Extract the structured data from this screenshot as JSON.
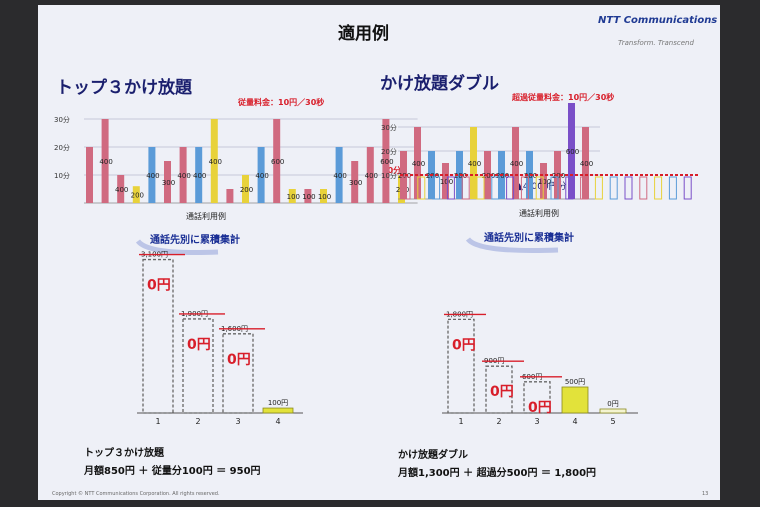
{
  "slide": {
    "title": "適用例",
    "logo": {
      "brand": "NTT Communications",
      "tagline": "Transform. Transcend"
    },
    "copyright": "Copyright © NTT Communications Corporation. All rights reserved.",
    "page_number": "13"
  },
  "left": {
    "heading": "トップ３かけ放題",
    "rate_note": "従量料金：10円／30秒",
    "chart_caption": "通話利用例",
    "arrow_label": "通話先別に累積集計",
    "summary_title": "トップ３かけ放題",
    "summary_formula": "月額850円 ＋ 従量分100円 ＝ 950円",
    "zero_label": "0円"
  },
  "right": {
    "heading": "かけ放題ダブル",
    "rate_note": "超過従量料金：10円／30秒",
    "chart_caption": "通話利用例",
    "arrow_label": "通話先別に累積集計",
    "threshold_label": "10分",
    "savings_label": "▲4,000円分",
    "summary_title": "かけ放題ダブル",
    "summary_formula": "月額1,300円 ＋ 超過分500円 ＝ 1,800円",
    "zero_label": "0円"
  },
  "chart_data": [
    {
      "type": "bar",
      "name": "left-usage",
      "y_ticks": [
        "10分",
        "20分",
        "30分"
      ],
      "ylim": [
        0,
        30
      ],
      "bars": [
        {
          "v": 20,
          "c": "#d06a80",
          "l": ""
        },
        {
          "v": 30,
          "c": "#d06a80",
          "l": "400"
        },
        {
          "v": 10,
          "c": "#d06a80",
          "l": "400"
        },
        {
          "v": 6,
          "c": "#e8d23a",
          "l": "200"
        },
        {
          "v": 20,
          "c": "#5b9bd8",
          "l": "400"
        },
        {
          "v": 15,
          "c": "#d06a80",
          "l": "300"
        },
        {
          "v": 20,
          "c": "#d06a80",
          "l": "400"
        },
        {
          "v": 20,
          "c": "#5b9bd8",
          "l": "400"
        },
        {
          "v": 30,
          "c": "#e8d23a",
          "l": "400"
        },
        {
          "v": 5,
          "c": "#d06a80",
          "l": ""
        },
        {
          "v": 10,
          "c": "#e8d23a",
          "l": "200"
        },
        {
          "v": 20,
          "c": "#5b9bd8",
          "l": "400"
        },
        {
          "v": 30,
          "c": "#d06a80",
          "l": "600"
        },
        {
          "v": 5,
          "c": "#e8d23a",
          "l": "100"
        },
        {
          "v": 5,
          "c": "#d06a80",
          "l": "100"
        },
        {
          "v": 5,
          "c": "#e8d23a",
          "l": "100"
        },
        {
          "v": 20,
          "c": "#5b9bd8",
          "l": "400"
        },
        {
          "v": 15,
          "c": "#d06a80",
          "l": "300"
        },
        {
          "v": 20,
          "c": "#d06a80",
          "l": "400"
        },
        {
          "v": 30,
          "c": "#d06a80",
          "l": "600"
        },
        {
          "v": 10,
          "c": "#e8d23a",
          "l": "200"
        }
      ]
    },
    {
      "type": "bar",
      "name": "right-usage",
      "y_ticks": [
        "10分",
        "20分",
        "30分"
      ],
      "ylim": [
        0,
        30
      ],
      "bars": [
        {
          "v": 20,
          "c": "#d06a80",
          "l": "200"
        },
        {
          "v": 30,
          "c": "#d06a80",
          "l": "400"
        },
        {
          "v": 20,
          "c": "#5b9bd8",
          "l": "200"
        },
        {
          "v": 15,
          "c": "#d06a80",
          "l": "100"
        },
        {
          "v": 20,
          "c": "#5b9bd8",
          "l": "200"
        },
        {
          "v": 30,
          "c": "#e8d23a",
          "l": "400"
        },
        {
          "v": 20,
          "c": "#d06a80",
          "l": "200"
        },
        {
          "v": 20,
          "c": "#5b9bd8",
          "l": "200"
        },
        {
          "v": 30,
          "c": "#d06a80",
          "l": "400"
        },
        {
          "v": 20,
          "c": "#5b9bd8",
          "l": "200"
        },
        {
          "v": 15,
          "c": "#d06a80",
          "l": "100"
        },
        {
          "v": 20,
          "c": "#d06a80",
          "l": "200"
        },
        {
          "v": 40,
          "c": "#7a4fc8",
          "l": "600"
        },
        {
          "v": 30,
          "c": "#d06a80",
          "l": "400"
        }
      ]
    },
    {
      "type": "bar",
      "name": "left-totals",
      "categories": [
        "1",
        "2",
        "3",
        "4"
      ],
      "values": [
        3100,
        1900,
        1600,
        100
      ],
      "labels": [
        "3,100円",
        "1,900円",
        "1,600円",
        "100円"
      ],
      "charged": [
        false,
        false,
        false,
        true
      ]
    },
    {
      "type": "bar",
      "name": "right-totals",
      "categories": [
        "1",
        "2",
        "3",
        "4",
        "5"
      ],
      "values": [
        1800,
        900,
        600,
        500,
        0
      ],
      "labels": [
        "1,800円",
        "900円",
        "600円",
        "500円",
        "0円"
      ],
      "charged": [
        false,
        false,
        false,
        true,
        true
      ]
    }
  ]
}
